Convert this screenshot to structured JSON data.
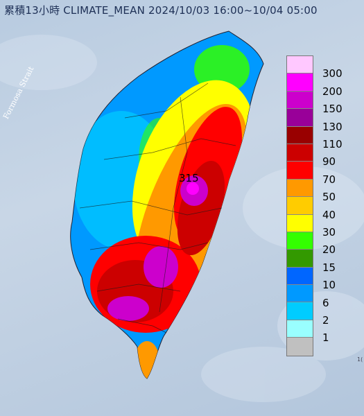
{
  "header": {
    "title": "累積13小時 CLIMATE_MEAN 2024/10/03 16:00~10/04 05:00"
  },
  "map": {
    "strait_label": "Formosa Strait",
    "peak_value": "315",
    "edge_label": "1("
  },
  "legend": {
    "labels": [
      "300",
      "200",
      "150",
      "130",
      "110",
      "90",
      "70",
      "50",
      "40",
      "30",
      "20",
      "15",
      "10",
      "6",
      "2",
      "1"
    ],
    "colors": [
      "#ffc8ff",
      "#ff00ff",
      "#cc00cc",
      "#990099",
      "#990000",
      "#cc0000",
      "#ff0000",
      "#ff9900",
      "#ffcc00",
      "#ffff00",
      "#33ff00",
      "#339900",
      "#0066ff",
      "#0099ff",
      "#00ccff",
      "#99ffff",
      "#c0c0c0"
    ]
  }
}
